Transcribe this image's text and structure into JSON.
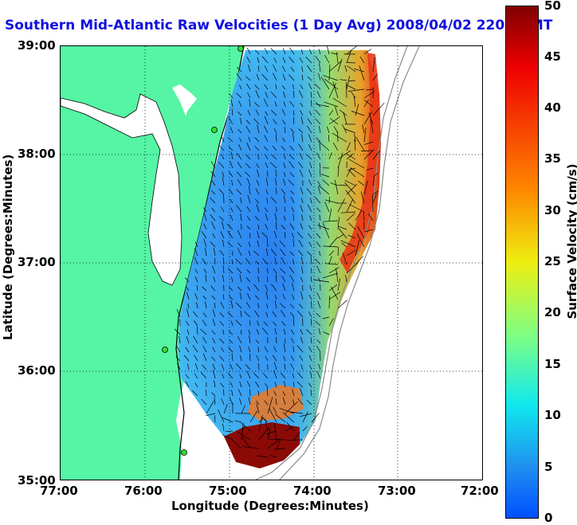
{
  "title": "Southern Mid-Atlantic Raw Velocities (1 Day Avg) 2008/04/02 2200 GMT",
  "axes": {
    "xlabel": "Longitude (Degrees:Minutes)",
    "ylabel": "Latitude (Degrees:Minutes)",
    "xticks": [
      "77:00",
      "76:00",
      "75:00",
      "74:00",
      "73:00",
      "72:00"
    ],
    "yticks": [
      "39:00",
      "38:00",
      "37:00",
      "36:00",
      "35:00"
    ],
    "xlim": [
      -77,
      -72
    ],
    "ylim": [
      35,
      39
    ]
  },
  "colorbar": {
    "label": "Surface Velocity (cm/s)",
    "ticks": [
      "50",
      "45",
      "40",
      "35",
      "30",
      "25",
      "20",
      "15",
      "10",
      "5",
      "0"
    ],
    "range": [
      0,
      50
    ]
  },
  "colors": {
    "land": "#55f5a5",
    "title": "#1010e0",
    "ocean_field_base": "#3aa0f0"
  }
}
